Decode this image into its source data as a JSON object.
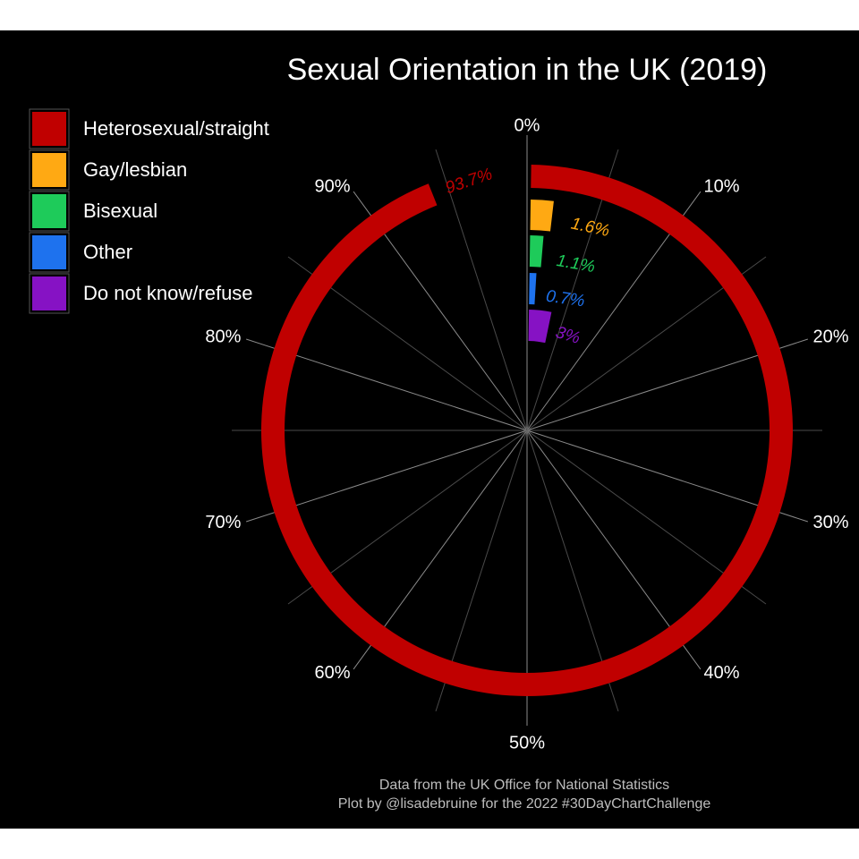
{
  "chart_data": {
    "type": "bar",
    "coordinate": "polar",
    "title": "Sexual Orientation in the UK (2019)",
    "categories": [
      "Heterosexual/straight",
      "Gay/lesbian",
      "Bisexual",
      "Other",
      "Do not know/refuse"
    ],
    "values": [
      93.7,
      1.6,
      1.1,
      0.7,
      3
    ],
    "value_labels": [
      "93.7%",
      "1.6%",
      "1.1%",
      "0.7%",
      "3%"
    ],
    "colors": [
      "#C00000",
      "#FFA913",
      "#1ECB5A",
      "#1E72EE",
      "#8612C4"
    ],
    "theta_range": [
      0,
      100
    ],
    "theta_ticks": [
      "0%",
      "10%",
      "20%",
      "30%",
      "40%",
      "50%",
      "60%",
      "70%",
      "80%",
      "90%"
    ],
    "grid": true,
    "legend": {
      "position": "top-left",
      "entries": [
        "Heterosexual/straight",
        "Gay/lesbian",
        "Bisexual",
        "Other",
        "Do not know/refuse"
      ]
    },
    "caption": [
      "Data from the UK Office for National Statistics",
      "Plot by @lisadebruine for the 2022 #30DayChartChallenge"
    ]
  }
}
